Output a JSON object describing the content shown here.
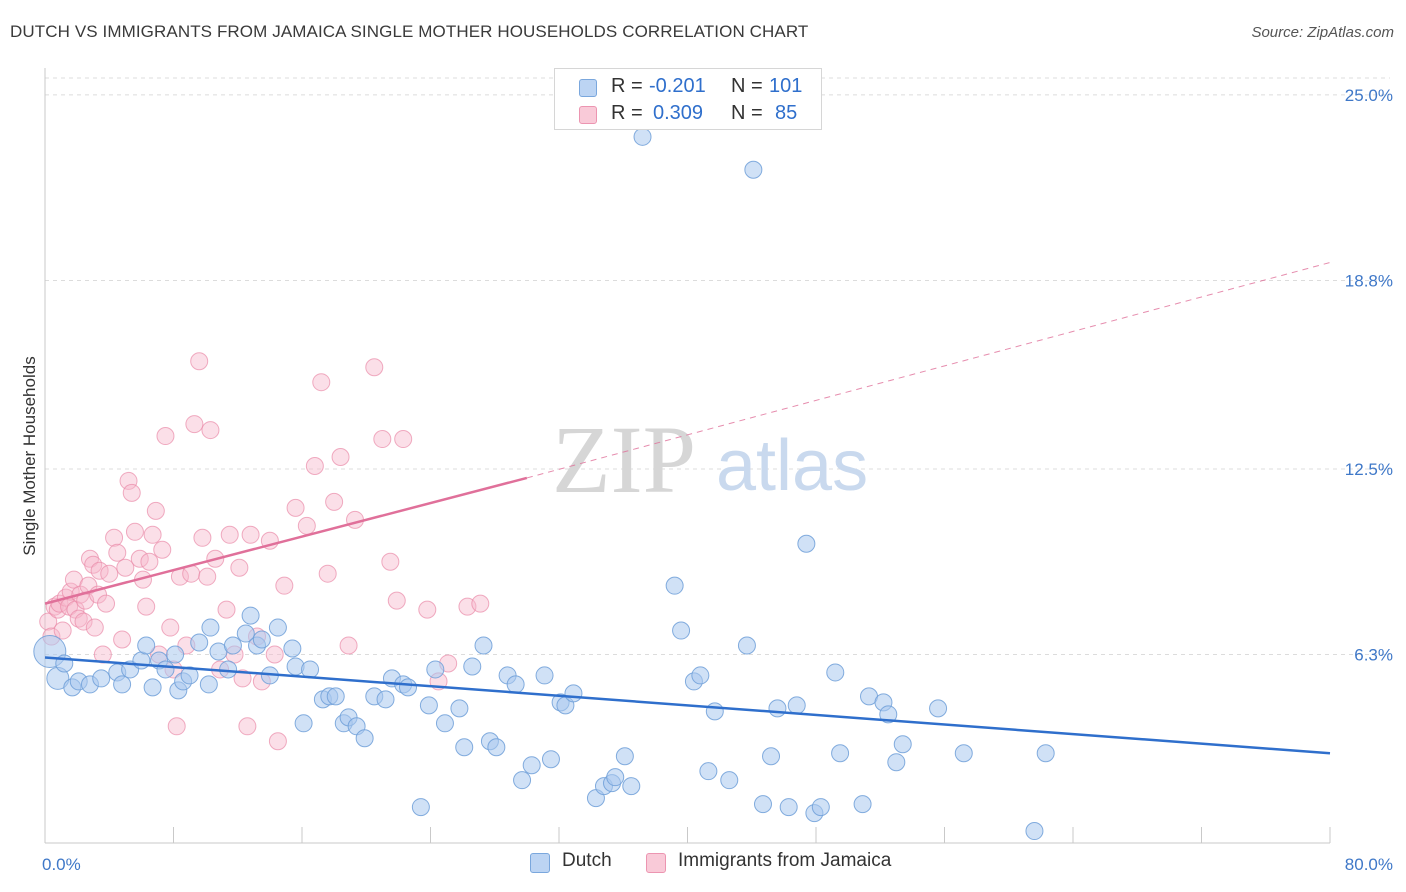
{
  "title": "DUTCH VS IMMIGRANTS FROM JAMAICA SINGLE MOTHER HOUSEHOLDS CORRELATION CHART",
  "source": "Source: ZipAtlas.com",
  "watermark": {
    "zip": "ZIP",
    "atlas": "atlas"
  },
  "legend_top": [
    {
      "r_label": "R = ",
      "r_value": "-0.201",
      "n_label": "N = ",
      "n_value": "101"
    },
    {
      "r_label": "R = ",
      "r_value": "0.309",
      "n_label": "N = ",
      "n_value": "85"
    }
  ],
  "legend_bottom": [
    "Dutch",
    "Immigrants from Jamaica"
  ],
  "colors": {
    "dutch_fill": "#a9c8ef",
    "dutch_stroke": "#6f9fd8",
    "dutch_line": "#2f6fcc",
    "jamaica_fill": "#f6b9cc",
    "jamaica_stroke": "#e98aa8",
    "jamaica_line": "#e0709a",
    "tick_text": "#3f78c8",
    "grid": "#dcdcdc"
  },
  "chart_data": {
    "type": "scatter",
    "title": "DUTCH VS IMMIGRANTS FROM JAMAICA SINGLE MOTHER HOUSEHOLDS CORRELATION CHART",
    "xlabel": "",
    "ylabel": "Single Mother Households",
    "xlim": [
      0,
      80
    ],
    "ylim": [
      0,
      25.9
    ],
    "x_ticks_labeled": [
      "0.0%",
      "80.0%"
    ],
    "y_ticks": [
      6.3,
      12.5,
      18.8,
      25.0
    ],
    "y_tick_labels": [
      "6.3%",
      "12.5%",
      "18.8%",
      "25.0%"
    ],
    "grid": true,
    "legend_placement": "top-center and bottom",
    "series": [
      {
        "name": "Dutch",
        "r": -0.201,
        "n": 101,
        "trend": {
          "x": [
            0,
            80
          ],
          "y": [
            6.2,
            3.0
          ],
          "dashed_extension": false
        },
        "points": [
          [
            0.3,
            6.4
          ],
          [
            0.8,
            5.5
          ],
          [
            1.2,
            6.0
          ],
          [
            1.7,
            5.2
          ],
          [
            2.1,
            5.4
          ],
          [
            2.8,
            5.3
          ],
          [
            3.5,
            5.5
          ],
          [
            4.5,
            5.7
          ],
          [
            4.8,
            5.3
          ],
          [
            5.3,
            5.8
          ],
          [
            6.0,
            6.1
          ],
          [
            6.3,
            6.6
          ],
          [
            6.7,
            5.2
          ],
          [
            7.1,
            6.1
          ],
          [
            7.5,
            5.8
          ],
          [
            8.1,
            6.3
          ],
          [
            8.3,
            5.1
          ],
          [
            8.6,
            5.4
          ],
          [
            9.0,
            5.6
          ],
          [
            9.6,
            6.7
          ],
          [
            10.2,
            5.3
          ],
          [
            10.3,
            7.2
          ],
          [
            10.8,
            6.4
          ],
          [
            11.4,
            5.8
          ],
          [
            11.7,
            6.6
          ],
          [
            12.5,
            7.0
          ],
          [
            12.8,
            7.6
          ],
          [
            13.2,
            6.6
          ],
          [
            13.5,
            6.8
          ],
          [
            14.0,
            5.6
          ],
          [
            14.5,
            7.2
          ],
          [
            15.4,
            6.5
          ],
          [
            15.6,
            5.9
          ],
          [
            16.1,
            4.0
          ],
          [
            16.5,
            5.8
          ],
          [
            17.3,
            4.8
          ],
          [
            17.7,
            4.9
          ],
          [
            18.1,
            4.9
          ],
          [
            18.6,
            4.0
          ],
          [
            18.9,
            4.2
          ],
          [
            19.4,
            3.9
          ],
          [
            19.9,
            3.5
          ],
          [
            20.5,
            4.9
          ],
          [
            21.2,
            4.8
          ],
          [
            21.6,
            5.5
          ],
          [
            22.3,
            5.3
          ],
          [
            22.6,
            5.2
          ],
          [
            23.4,
            1.2
          ],
          [
            23.9,
            4.6
          ],
          [
            24.3,
            5.8
          ],
          [
            24.9,
            4.0
          ],
          [
            25.8,
            4.5
          ],
          [
            26.1,
            3.2
          ],
          [
            26.6,
            5.9
          ],
          [
            27.3,
            6.6
          ],
          [
            27.7,
            3.4
          ],
          [
            28.1,
            3.2
          ],
          [
            28.8,
            5.6
          ],
          [
            29.3,
            5.3
          ],
          [
            29.7,
            2.1
          ],
          [
            30.3,
            2.6
          ],
          [
            31.1,
            5.6
          ],
          [
            31.5,
            2.8
          ],
          [
            32.1,
            4.7
          ],
          [
            32.4,
            4.6
          ],
          [
            32.9,
            5.0
          ],
          [
            34.3,
            1.5
          ],
          [
            34.8,
            1.9
          ],
          [
            35.3,
            2.0
          ],
          [
            35.5,
            2.2
          ],
          [
            36.1,
            2.9
          ],
          [
            36.5,
            1.9
          ],
          [
            37.2,
            23.6
          ],
          [
            39.2,
            8.6
          ],
          [
            39.6,
            7.1
          ],
          [
            40.4,
            5.4
          ],
          [
            40.8,
            5.6
          ],
          [
            41.3,
            2.4
          ],
          [
            41.7,
            4.4
          ],
          [
            42.6,
            2.1
          ],
          [
            43.7,
            6.6
          ],
          [
            44.1,
            22.5
          ],
          [
            44.7,
            1.3
          ],
          [
            45.2,
            2.9
          ],
          [
            45.6,
            4.5
          ],
          [
            46.3,
            1.2
          ],
          [
            46.8,
            4.6
          ],
          [
            47.4,
            10.0
          ],
          [
            47.9,
            1.0
          ],
          [
            48.3,
            1.2
          ],
          [
            49.2,
            5.7
          ],
          [
            49.5,
            3.0
          ],
          [
            50.9,
            1.3
          ],
          [
            51.3,
            4.9
          ],
          [
            52.2,
            4.7
          ],
          [
            52.5,
            4.3
          ],
          [
            53.0,
            2.7
          ],
          [
            53.4,
            3.3
          ],
          [
            55.6,
            4.5
          ],
          [
            57.2,
            3.0
          ],
          [
            61.6,
            0.4
          ],
          [
            62.3,
            3.0
          ]
        ]
      },
      {
        "name": "Immigrants from Jamaica",
        "r": 0.309,
        "n": 85,
        "trend": {
          "x": [
            0,
            30
          ],
          "y": [
            8.0,
            12.2
          ],
          "dashed_extension_to": [
            80,
            19.4
          ]
        },
        "points": [
          [
            0.2,
            7.4
          ],
          [
            0.4,
            6.9
          ],
          [
            0.6,
            7.9
          ],
          [
            0.8,
            7.8
          ],
          [
            0.9,
            8.0
          ],
          [
            1.1,
            7.1
          ],
          [
            1.3,
            8.2
          ],
          [
            1.5,
            7.9
          ],
          [
            1.6,
            8.4
          ],
          [
            1.8,
            8.8
          ],
          [
            1.9,
            7.8
          ],
          [
            2.1,
            7.5
          ],
          [
            2.2,
            8.3
          ],
          [
            2.4,
            7.4
          ],
          [
            2.5,
            8.1
          ],
          [
            2.7,
            8.6
          ],
          [
            2.8,
            9.5
          ],
          [
            3.0,
            9.3
          ],
          [
            3.1,
            7.2
          ],
          [
            3.3,
            8.3
          ],
          [
            3.4,
            9.1
          ],
          [
            3.6,
            6.3
          ],
          [
            3.8,
            8.0
          ],
          [
            4.0,
            9.0
          ],
          [
            4.3,
            10.2
          ],
          [
            4.5,
            9.7
          ],
          [
            4.8,
            6.8
          ],
          [
            5.0,
            9.2
          ],
          [
            5.2,
            12.1
          ],
          [
            5.4,
            11.7
          ],
          [
            5.6,
            10.4
          ],
          [
            5.9,
            9.5
          ],
          [
            6.1,
            8.8
          ],
          [
            6.3,
            7.9
          ],
          [
            6.5,
            9.4
          ],
          [
            6.7,
            10.3
          ],
          [
            6.9,
            11.1
          ],
          [
            7.1,
            6.3
          ],
          [
            7.3,
            9.8
          ],
          [
            7.5,
            13.6
          ],
          [
            7.8,
            7.2
          ],
          [
            8.0,
            5.8
          ],
          [
            8.2,
            3.9
          ],
          [
            8.4,
            8.9
          ],
          [
            8.8,
            6.6
          ],
          [
            9.1,
            9.0
          ],
          [
            9.3,
            14.0
          ],
          [
            9.6,
            16.1
          ],
          [
            9.8,
            10.2
          ],
          [
            10.1,
            8.9
          ],
          [
            10.3,
            13.8
          ],
          [
            10.6,
            9.5
          ],
          [
            10.9,
            5.8
          ],
          [
            11.3,
            7.8
          ],
          [
            11.5,
            10.3
          ],
          [
            11.8,
            6.3
          ],
          [
            12.1,
            9.2
          ],
          [
            12.3,
            5.5
          ],
          [
            12.6,
            3.9
          ],
          [
            12.8,
            10.3
          ],
          [
            13.2,
            6.9
          ],
          [
            13.5,
            5.4
          ],
          [
            14.0,
            10.1
          ],
          [
            14.3,
            6.3
          ],
          [
            14.5,
            3.4
          ],
          [
            14.9,
            8.6
          ],
          [
            15.6,
            11.2
          ],
          [
            16.3,
            10.6
          ],
          [
            16.8,
            12.6
          ],
          [
            17.2,
            15.4
          ],
          [
            17.6,
            9.0
          ],
          [
            18.0,
            11.4
          ],
          [
            18.4,
            12.9
          ],
          [
            18.9,
            6.6
          ],
          [
            19.3,
            10.8
          ],
          [
            20.5,
            15.9
          ],
          [
            21.0,
            13.5
          ],
          [
            21.5,
            9.4
          ],
          [
            21.9,
            8.1
          ],
          [
            22.3,
            13.5
          ],
          [
            23.8,
            7.8
          ],
          [
            24.5,
            5.4
          ],
          [
            25.1,
            6.0
          ],
          [
            26.3,
            7.9
          ],
          [
            27.1,
            8.0
          ]
        ]
      }
    ]
  }
}
